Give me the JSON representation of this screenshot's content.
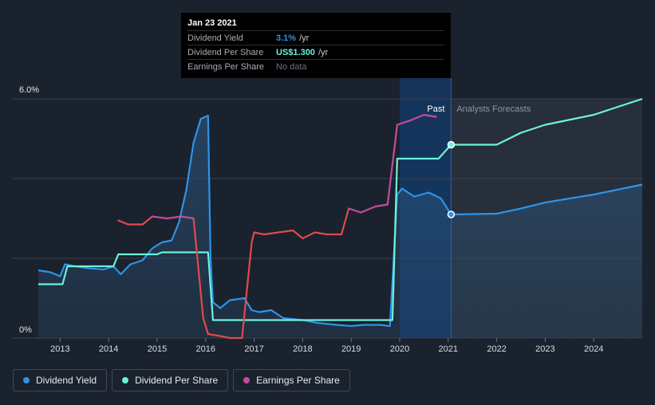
{
  "tooltip": {
    "date": "Jan 23 2021",
    "rows": [
      {
        "label": "Dividend Yield",
        "value": "3.1%",
        "unit": "/yr",
        "color": "#2e93e8"
      },
      {
        "label": "Dividend Per Share",
        "value": "US$1.300",
        "unit": "/yr",
        "color": "#6bf2d9"
      },
      {
        "label": "Earnings Per Share",
        "value": "No data",
        "unit": "",
        "color": "#6e737a"
      }
    ]
  },
  "legend": [
    {
      "label": "Dividend Yield",
      "color": "#2e93e8"
    },
    {
      "label": "Dividend Per Share",
      "color": "#6bf2d9"
    },
    {
      "label": "Earnings Per Share",
      "color": "#c44b9c"
    }
  ],
  "chart_data": {
    "type": "line",
    "y_axis_labels": [
      "6.0%",
      "0%"
    ],
    "ylim": [
      0,
      6
    ],
    "xlim": [
      2012.55,
      2025.0
    ],
    "x_ticks": [
      2013,
      2014,
      2015,
      2016,
      2017,
      2018,
      2019,
      2020,
      2021,
      2022,
      2023,
      2024
    ],
    "gridlines": [
      0,
      2,
      4,
      6
    ],
    "past_label": "Past",
    "forecast_label": "Analysts Forecasts",
    "now_x": 2021.06,
    "highlight_start_x": 2020.0,
    "colors": {
      "yield": "#2e93e8",
      "dps": "#6bf2d9",
      "eps": "#c44b9c",
      "eps_low": "#e04a4a"
    },
    "series": [
      {
        "key": "yield",
        "name": "Dividend Yield",
        "points": [
          [
            2012.55,
            1.7
          ],
          [
            2012.8,
            1.65
          ],
          [
            2013.0,
            1.55
          ],
          [
            2013.1,
            1.85
          ],
          [
            2013.3,
            1.8
          ],
          [
            2013.6,
            1.75
          ],
          [
            2013.9,
            1.72
          ],
          [
            2014.1,
            1.8
          ],
          [
            2014.25,
            1.6
          ],
          [
            2014.45,
            1.85
          ],
          [
            2014.7,
            1.95
          ],
          [
            2014.9,
            2.25
          ],
          [
            2015.1,
            2.4
          ],
          [
            2015.3,
            2.45
          ],
          [
            2015.45,
            2.9
          ],
          [
            2015.6,
            3.7
          ],
          [
            2015.75,
            4.9
          ],
          [
            2015.9,
            5.5
          ],
          [
            2016.05,
            5.58
          ],
          [
            2016.1,
            2.0
          ],
          [
            2016.15,
            0.9
          ],
          [
            2016.3,
            0.75
          ],
          [
            2016.5,
            0.95
          ],
          [
            2016.8,
            1.0
          ],
          [
            2016.95,
            0.7
          ],
          [
            2017.1,
            0.65
          ],
          [
            2017.35,
            0.7
          ],
          [
            2017.6,
            0.5
          ],
          [
            2018.0,
            0.45
          ],
          [
            2018.3,
            0.38
          ],
          [
            2018.7,
            0.33
          ],
          [
            2019.0,
            0.3
          ],
          [
            2019.25,
            0.33
          ],
          [
            2019.6,
            0.33
          ],
          [
            2019.8,
            0.3
          ],
          [
            2019.95,
            3.6
          ],
          [
            2020.05,
            3.75
          ],
          [
            2020.3,
            3.55
          ],
          [
            2020.6,
            3.65
          ],
          [
            2020.85,
            3.5
          ],
          [
            2021.06,
            3.1
          ]
        ]
      },
      {
        "key": "yield_forecast",
        "name": "Dividend Yield",
        "points": [
          [
            2021.06,
            3.1
          ],
          [
            2022.0,
            3.12
          ],
          [
            2022.5,
            3.25
          ],
          [
            2023.0,
            3.4
          ],
          [
            2024.0,
            3.6
          ],
          [
            2025.0,
            3.85
          ]
        ]
      },
      {
        "key": "dps",
        "name": "Dividend Per Share",
        "points": [
          [
            2012.55,
            1.35
          ],
          [
            2013.05,
            1.35
          ],
          [
            2013.15,
            1.8
          ],
          [
            2014.1,
            1.8
          ],
          [
            2014.2,
            2.1
          ],
          [
            2015.0,
            2.1
          ],
          [
            2015.1,
            2.15
          ],
          [
            2016.05,
            2.15
          ],
          [
            2016.15,
            0.45
          ],
          [
            2019.85,
            0.45
          ],
          [
            2019.95,
            4.5
          ],
          [
            2020.8,
            4.5
          ],
          [
            2021.06,
            4.85
          ]
        ]
      },
      {
        "key": "dps_forecast",
        "name": "Dividend Per Share",
        "points": [
          [
            2021.06,
            4.85
          ],
          [
            2022.0,
            4.85
          ],
          [
            2022.5,
            5.15
          ],
          [
            2023.0,
            5.35
          ],
          [
            2024.0,
            5.6
          ],
          [
            2025.0,
            6.0
          ]
        ]
      },
      {
        "key": "eps",
        "name": "Earnings Per Share",
        "points": [
          [
            2014.2,
            2.95
          ],
          [
            2014.4,
            2.85
          ],
          [
            2014.7,
            2.85
          ],
          [
            2014.9,
            3.05
          ],
          [
            2015.2,
            3.0
          ],
          [
            2015.5,
            3.05
          ],
          [
            2015.75,
            3.0
          ],
          [
            2015.95,
            0.5
          ],
          [
            2016.05,
            0.1
          ],
          [
            2016.3,
            0.05
          ],
          [
            2016.5,
            0.0
          ],
          [
            2016.75,
            0.0
          ],
          [
            2016.95,
            2.4
          ],
          [
            2017.0,
            2.65
          ],
          [
            2017.2,
            2.6
          ],
          [
            2017.5,
            2.65
          ],
          [
            2017.8,
            2.7
          ],
          [
            2018.0,
            2.5
          ],
          [
            2018.25,
            2.65
          ],
          [
            2018.5,
            2.6
          ],
          [
            2018.8,
            2.6
          ],
          [
            2018.95,
            3.25
          ],
          [
            2019.2,
            3.15
          ],
          [
            2019.5,
            3.3
          ],
          [
            2019.75,
            3.35
          ],
          [
            2019.95,
            5.35
          ],
          [
            2020.2,
            5.45
          ],
          [
            2020.5,
            5.6
          ],
          [
            2020.75,
            5.55
          ]
        ]
      }
    ]
  }
}
